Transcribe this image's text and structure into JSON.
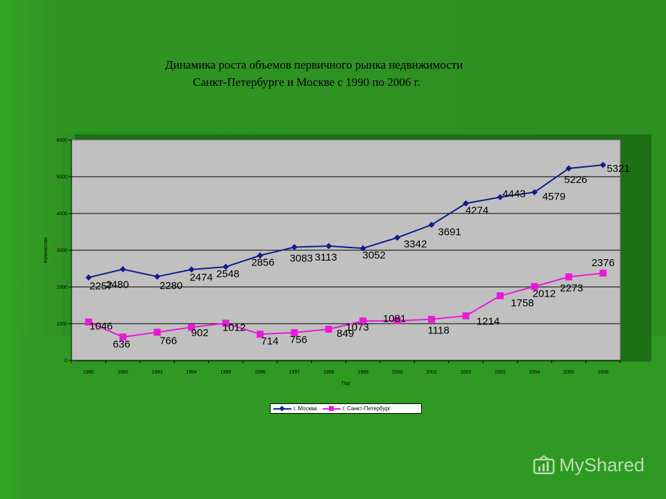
{
  "title": {
    "line1": "Динамика роста объемов первичного рынка недвижимости",
    "line2": "Санкт-Петербурге и Москве с 1990 по 2006 г."
  },
  "watermark": {
    "text": "MyShared"
  },
  "colors": {
    "moscow": "#0d1f8a",
    "spb": "#e81ad8",
    "plot_bg": "#c0c0c0",
    "background": "#2f9622"
  },
  "chart_data": {
    "type": "line",
    "categories": [
      "1990",
      "1992",
      "1993",
      "1994",
      "1995",
      "1996",
      "1997",
      "1998",
      "1999",
      "2000",
      "2001",
      "2002",
      "2003",
      "2004",
      "2005",
      "2006"
    ],
    "xlabel": "Год",
    "ylabel": "Количество",
    "ylim": [
      0,
      6000
    ],
    "yticks": [
      0,
      1000,
      2000,
      3000,
      4000,
      5000,
      6000
    ],
    "grid": true,
    "legend_position": "bottom",
    "series": [
      {
        "name": "г. Москва",
        "color": "#0d1f8a",
        "marker": "diamond",
        "values": [
          2257,
          2480,
          2280,
          2474,
          2548,
          2856,
          3083,
          3113,
          3052,
          3342,
          3691,
          4274,
          4443,
          4579,
          5226,
          5321
        ]
      },
      {
        "name": "г. Санкт-Петербург",
        "color": "#e81ad8",
        "marker": "square",
        "values": [
          1046,
          636,
          766,
          902,
          1012,
          714,
          756,
          849,
          1073,
          1081,
          1118,
          1214,
          1758,
          2012,
          2273,
          2376
        ]
      }
    ]
  }
}
